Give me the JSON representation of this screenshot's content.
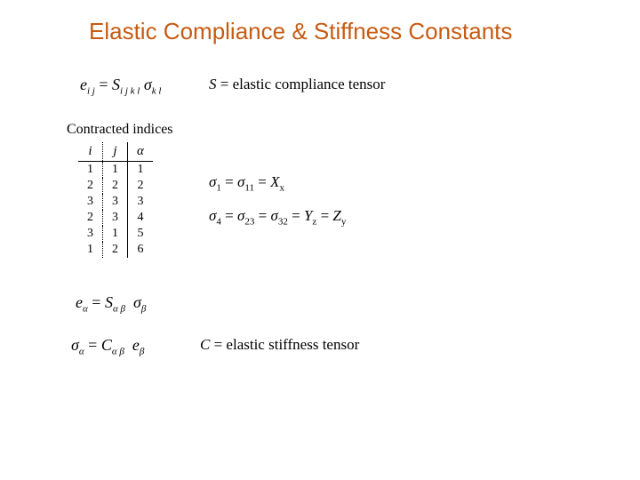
{
  "title": "Elastic Compliance & Stiffness Constants",
  "eq1": {
    "lhs_var": "e",
    "lhs_sub": "i j",
    "rhs_var": "S",
    "rhs_sub": "i j k l",
    "rhs2_var": "σ",
    "rhs2_sub": "k l"
  },
  "def1": {
    "symbol": "S",
    "text": "= elastic compliance tensor"
  },
  "contracted_label": "Contracted indices",
  "index_table": {
    "headers": [
      "i",
      "j",
      "α"
    ],
    "rows": [
      [
        "1",
        "1",
        "1"
      ],
      [
        "2",
        "2",
        "2"
      ],
      [
        "3",
        "3",
        "3"
      ],
      [
        "2",
        "3",
        "4"
      ],
      [
        "3",
        "1",
        "5"
      ],
      [
        "1",
        "2",
        "6"
      ]
    ]
  },
  "sigma_row1": {
    "a_var": "σ",
    "a_sub": "1",
    "b_var": "σ",
    "b_sub": "11",
    "c_var": "X",
    "c_sub": "x"
  },
  "sigma_row2": {
    "a_var": "σ",
    "a_sub": "4",
    "b_var": "σ",
    "b_sub": "23",
    "c_var": "σ",
    "c_sub": "32",
    "d_var": "Y",
    "d_sub": "z",
    "e_var": "Z",
    "e_sub": "y"
  },
  "eq2": {
    "lhs_var": "e",
    "lhs_sub": "α",
    "m_var": "S",
    "m_sub": "α β",
    "r_var": "σ",
    "r_sub": "β"
  },
  "eq3": {
    "lhs_var": "σ",
    "lhs_sub": "α",
    "m_var": "C",
    "m_sub": "α β",
    "r_var": "e",
    "r_sub": "β"
  },
  "def2": {
    "symbol": "C",
    "text": "= elastic stiffness tensor"
  },
  "colors": {
    "title": "#c75b12",
    "text": "#000000",
    "background": "#ffffff"
  }
}
